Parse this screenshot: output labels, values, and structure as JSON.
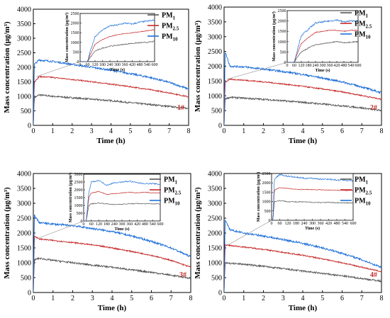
{
  "colors": {
    "pm1": "#555555",
    "pm25": "#c62828",
    "pm10": "#1e6fd9",
    "panel_label": "#c62828"
  },
  "chart_data": [
    {
      "type": "line",
      "panel_label": "1#",
      "xlabel": "Time (h)",
      "ylabel": "Mass concentration (μg/m³)",
      "xlim": [
        0,
        8
      ],
      "ylim": [
        0,
        4000
      ],
      "x_ticks": [
        0,
        1,
        2,
        3,
        4,
        5,
        6,
        7,
        8
      ],
      "y_ticks": [
        0,
        500,
        1000,
        1500,
        2000,
        2500,
        3000,
        3500,
        4000
      ],
      "legend": {
        "position": "top-right",
        "entries": [
          {
            "base": "PM",
            "sub": "1"
          },
          {
            "base": "PM",
            "sub": "2.5"
          },
          {
            "base": "PM",
            "sub": "10"
          }
        ]
      },
      "series": [
        {
          "name": "PM1",
          "x": [
            0,
            0.05,
            0.3,
            1,
            2,
            3,
            4,
            5,
            6,
            7,
            8
          ],
          "values": [
            0,
            950,
            1050,
            1000,
            950,
            900,
            850,
            780,
            720,
            650,
            580
          ]
        },
        {
          "name": "PM2.5",
          "x": [
            0,
            0.05,
            0.3,
            1,
            2,
            3,
            4,
            5,
            6,
            7,
            8
          ],
          "values": [
            0,
            1500,
            1680,
            1650,
            1580,
            1500,
            1420,
            1330,
            1230,
            1120,
            980
          ]
        },
        {
          "name": "PM10",
          "x": [
            0,
            0.05,
            0.3,
            1,
            2,
            3,
            4,
            5,
            6,
            7,
            8
          ],
          "values": [
            0,
            2100,
            2250,
            2200,
            2100,
            2000,
            1900,
            1780,
            1650,
            1480,
            1250
          ]
        }
      ],
      "inset": {
        "ylabel": "Mass concentration (μg/m³)",
        "xlabel": "Time (s)",
        "xlim": [
          0,
          600
        ],
        "ylim": [
          0,
          2500
        ],
        "x_ticks": [
          0,
          60,
          120,
          180,
          240,
          300,
          360,
          420,
          480,
          540,
          600
        ],
        "y_ticks": [
          0,
          500,
          1000,
          1500,
          2000,
          2500
        ],
        "series": [
          {
            "name": "PM1",
            "x": [
              0,
              60,
              80,
              120,
              180,
              240,
              300,
              360,
              420,
              480,
              540,
              600
            ],
            "values": [
              0,
              0,
              200,
              550,
              700,
              800,
              850,
              900,
              950,
              980,
              1000,
              1050
            ]
          },
          {
            "name": "PM2.5",
            "x": [
              0,
              60,
              80,
              120,
              180,
              240,
              300,
              360,
              420,
              480,
              540,
              600
            ],
            "values": [
              0,
              0,
              350,
              900,
              1150,
              1300,
              1400,
              1450,
              1500,
              1550,
              1600,
              1650
            ]
          },
          {
            "name": "PM10",
            "x": [
              0,
              60,
              80,
              120,
              180,
              240,
              300,
              360,
              420,
              480,
              540,
              600
            ],
            "values": [
              0,
              0,
              500,
              1300,
              1650,
              1850,
              1900,
              2000,
              1950,
              2050,
              2100,
              2150
            ]
          }
        ]
      }
    },
    {
      "type": "line",
      "panel_label": "2#",
      "xlabel": "Time (h)",
      "ylabel": "Mass concentration (μg/m³)",
      "xlim": [
        0,
        8
      ],
      "ylim": [
        0,
        4000
      ],
      "x_ticks": [
        0,
        1,
        2,
        3,
        4,
        5,
        6,
        7,
        8
      ],
      "y_ticks": [
        0,
        500,
        1000,
        1500,
        2000,
        2500,
        3000,
        3500,
        4000
      ],
      "legend": {
        "position": "top-right",
        "entries": [
          {
            "base": "PM",
            "sub": "1"
          },
          {
            "base": "PM",
            "sub": "2.5"
          },
          {
            "base": "PM",
            "sub": "10"
          }
        ]
      },
      "series": [
        {
          "name": "PM1",
          "x": [
            0,
            0.05,
            0.3,
            1,
            2,
            3,
            4,
            5,
            6,
            7,
            8
          ],
          "values": [
            0,
            900,
            950,
            920,
            880,
            830,
            780,
            720,
            660,
            590,
            500
          ]
        },
        {
          "name": "PM2.5",
          "x": [
            0,
            0.05,
            0.3,
            1,
            2,
            3,
            4,
            5,
            6,
            7,
            8
          ],
          "values": [
            0,
            1450,
            1560,
            1530,
            1470,
            1400,
            1320,
            1230,
            1130,
            1010,
            880
          ]
        },
        {
          "name": "PM10",
          "x": [
            0,
            0.05,
            0.3,
            1,
            2,
            3,
            4,
            5,
            6,
            7,
            8
          ],
          "values": [
            0,
            2500,
            2000,
            1980,
            1900,
            1820,
            1720,
            1600,
            1470,
            1300,
            1100
          ]
        }
      ],
      "inset": {
        "ylabel": "Mass concentration (μg/m³)",
        "xlabel": "Time (s)",
        "xlim": [
          0,
          600
        ],
        "ylim": [
          0,
          2500
        ],
        "x_ticks": [
          0,
          60,
          120,
          180,
          240,
          300,
          360,
          420,
          480,
          540,
          600
        ],
        "y_ticks": [
          0,
          500,
          1000,
          1500,
          2000,
          2500
        ],
        "series": [
          {
            "name": "PM1",
            "x": [
              0,
              60,
              90,
              120,
              180,
              240,
              300,
              360,
              420,
              480,
              540,
              600
            ],
            "values": [
              0,
              0,
              300,
              500,
              700,
              850,
              900,
              950,
              1000,
              950,
              980,
              1000
            ]
          },
          {
            "name": "PM2.5",
            "x": [
              0,
              60,
              90,
              120,
              180,
              240,
              300,
              360,
              420,
              480,
              540,
              600
            ],
            "values": [
              0,
              0,
              500,
              900,
              1200,
              1450,
              1500,
              1550,
              1550,
              1500,
              1550,
              1550
            ]
          },
          {
            "name": "PM10",
            "x": [
              0,
              60,
              90,
              120,
              180,
              240,
              300,
              360,
              420,
              480,
              540,
              600
            ],
            "values": [
              0,
              0,
              700,
              1300,
              1600,
              1900,
              1950,
              2000,
              2050,
              1950,
              2000,
              2000
            ]
          }
        ]
      }
    },
    {
      "type": "line",
      "panel_label": "3#",
      "xlabel": "Time (h)",
      "ylabel": "Mass concentration (μg/m³)",
      "xlim": [
        0,
        8
      ],
      "ylim": [
        0,
        4000
      ],
      "x_ticks": [
        0,
        1,
        2,
        3,
        4,
        5,
        6,
        7,
        8
      ],
      "y_ticks": [
        0,
        500,
        1000,
        1500,
        2000,
        2500,
        3000,
        3500,
        4000
      ],
      "legend": {
        "position": "top-right",
        "entries": [
          {
            "base": "PM",
            "sub": "1"
          },
          {
            "base": "PM",
            "sub": "2.5"
          },
          {
            "base": "PM",
            "sub": "10"
          }
        ]
      },
      "series": [
        {
          "name": "PM1",
          "x": [
            0,
            0.05,
            0.3,
            1,
            2,
            3,
            4,
            5,
            6,
            7,
            8
          ],
          "values": [
            0,
            1100,
            1150,
            1080,
            1000,
            920,
            850,
            760,
            680,
            580,
            480
          ]
        },
        {
          "name": "PM2.5",
          "x": [
            0,
            0.05,
            0.3,
            1,
            2,
            3,
            4,
            5,
            6,
            7,
            8
          ],
          "values": [
            0,
            1900,
            1800,
            1750,
            1680,
            1600,
            1500,
            1380,
            1250,
            1080,
            850
          ]
        },
        {
          "name": "PM10",
          "x": [
            0,
            0.05,
            0.3,
            1,
            2,
            3,
            4,
            5,
            6,
            7,
            8
          ],
          "values": [
            0,
            2600,
            2350,
            2300,
            2250,
            2150,
            2050,
            1900,
            1720,
            1500,
            1200
          ]
        }
      ],
      "inset": {
        "ylabel": "Mass concentration (μg/m³)",
        "xlabel": "Time (s)",
        "xlim": [
          0,
          600
        ],
        "ylim": [
          0,
          3000
        ],
        "x_ticks": [
          0,
          60,
          120,
          180,
          240,
          300,
          360,
          420,
          480,
          540,
          600
        ],
        "y_ticks": [
          0,
          500,
          1000,
          1500,
          2000,
          2500,
          3000
        ],
        "series": [
          {
            "name": "PM1",
            "x": [
              0,
              20,
              40,
              60,
              120,
              180,
              240,
              300,
              360,
              420,
              480,
              540,
              600
            ],
            "values": [
              0,
              0,
              1000,
              1100,
              1150,
              1100,
              1050,
              1080,
              1100,
              1120,
              1100,
              1100,
              1100
            ]
          },
          {
            "name": "PM2.5",
            "x": [
              0,
              20,
              40,
              60,
              120,
              180,
              240,
              300,
              360,
              420,
              480,
              540,
              600
            ],
            "values": [
              0,
              0,
              1500,
              1800,
              1900,
              1700,
              1750,
              1800,
              1850,
              1800,
              1850,
              1800,
              1800
            ]
          },
          {
            "name": "PM10",
            "x": [
              0,
              20,
              40,
              60,
              120,
              180,
              240,
              300,
              360,
              420,
              480,
              540,
              600
            ],
            "values": [
              0,
              0,
              1800,
              2500,
              2600,
              2300,
              2450,
              2500,
              2550,
              2450,
              2400,
              2400,
              2350
            ]
          }
        ]
      }
    },
    {
      "type": "line",
      "panel_label": "4#",
      "xlabel": "Time (h)",
      "ylabel": "Mass concentration (μg/m³)",
      "xlim": [
        0,
        8
      ],
      "ylim": [
        0,
        4000
      ],
      "x_ticks": [
        0,
        1,
        2,
        3,
        4,
        5,
        6,
        7,
        8
      ],
      "y_ticks": [
        0,
        500,
        1000,
        1500,
        2000,
        2500,
        3000,
        3500,
        4000
      ],
      "legend": {
        "position": "top-right",
        "entries": [
          {
            "base": "PM",
            "sub": "1"
          },
          {
            "base": "PM",
            "sub": "2.5"
          },
          {
            "base": "PM",
            "sub": "10"
          }
        ]
      },
      "series": [
        {
          "name": "PM1",
          "x": [
            0,
            0.05,
            0.3,
            1,
            2,
            3,
            4,
            5,
            6,
            7,
            8
          ],
          "values": [
            0,
            1000,
            980,
            950,
            880,
            800,
            720,
            640,
            560,
            470,
            380
          ]
        },
        {
          "name": "PM2.5",
          "x": [
            0,
            0.05,
            0.3,
            1,
            2,
            3,
            4,
            5,
            6,
            7,
            8
          ],
          "values": [
            0,
            1600,
            1580,
            1530,
            1450,
            1350,
            1250,
            1130,
            1000,
            850,
            700
          ]
        },
        {
          "name": "PM10",
          "x": [
            0,
            0.05,
            0.3,
            1,
            2,
            3,
            4,
            5,
            6,
            7,
            8
          ],
          "values": [
            0,
            2450,
            2100,
            2000,
            1900,
            1780,
            1650,
            1500,
            1320,
            1100,
            850
          ]
        }
      ],
      "inset": {
        "ylabel": "Mass concentration (μg/m³)",
        "xlabel": "Time (s)",
        "xlim": [
          0,
          600
        ],
        "ylim": [
          0,
          2500
        ],
        "x_ticks": [
          0,
          60,
          120,
          180,
          240,
          300,
          360,
          420,
          480,
          540,
          600
        ],
        "y_ticks": [
          0,
          500,
          1000,
          1500,
          2000,
          2500
        ],
        "series": [
          {
            "name": "PM1",
            "x": [
              0,
              10,
              20,
              60,
              120,
              180,
              240,
              300,
              360,
              420,
              480,
              540,
              600
            ],
            "values": [
              0,
              0,
              1000,
              1050,
              1000,
              980,
              980,
              960,
              950,
              950,
              940,
              930,
              920
            ]
          },
          {
            "name": "PM2.5",
            "x": [
              0,
              10,
              20,
              60,
              120,
              180,
              240,
              300,
              360,
              420,
              480,
              540,
              600
            ],
            "values": [
              0,
              0,
              1600,
              1750,
              1700,
              1650,
              1650,
              1640,
              1630,
              1620,
              1600,
              1600,
              1600
            ]
          },
          {
            "name": "PM10",
            "x": [
              0,
              10,
              20,
              60,
              120,
              180,
              240,
              300,
              360,
              420,
              480,
              540,
              600
            ],
            "values": [
              0,
              0,
              2200,
              2450,
              2350,
              2300,
              2250,
              2250,
              2200,
              2200,
              2150,
              2150,
              2100
            ]
          }
        ]
      }
    }
  ]
}
